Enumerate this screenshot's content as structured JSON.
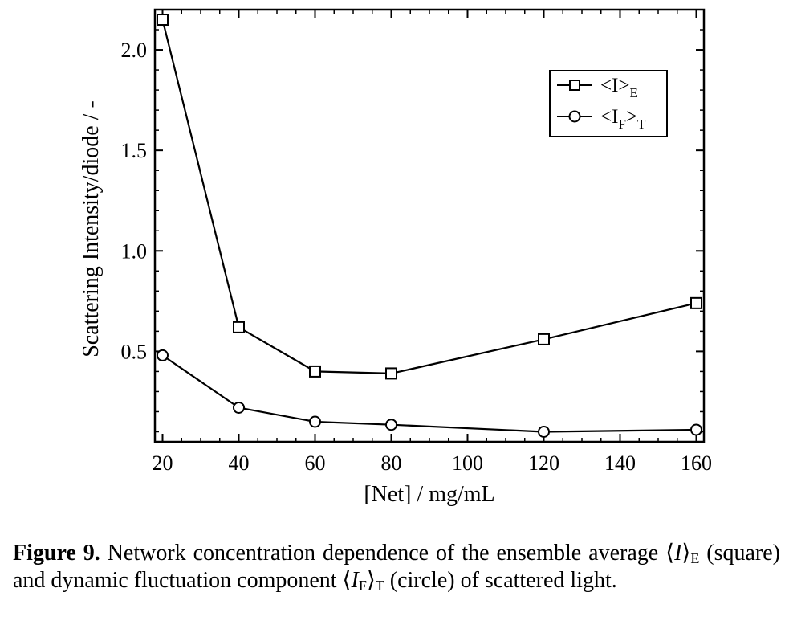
{
  "chart_data": {
    "type": "line",
    "xlabel": "[Net] / mg/mL",
    "ylabel": "Scattering Intensity/diode / -",
    "xlim": [
      18,
      162
    ],
    "ylim": [
      0.05,
      2.2
    ],
    "x_ticks": [
      20,
      40,
      60,
      80,
      100,
      120,
      140,
      160
    ],
    "y_ticks": [
      0.5,
      1.0,
      1.5,
      2.0
    ],
    "x_tick_labels": [
      "20",
      "40",
      "60",
      "80",
      "100",
      "120",
      "140",
      "160"
    ],
    "y_tick_labels": [
      "0.5",
      "1.0",
      "1.5",
      "2.0"
    ],
    "grid": false,
    "legend_position": "top-right",
    "series": [
      {
        "name": "<I>",
        "name_sub": "E",
        "marker": "square",
        "x": [
          20,
          40,
          60,
          80,
          120,
          160
        ],
        "y": [
          2.15,
          0.62,
          0.4,
          0.39,
          0.56,
          0.74
        ]
      },
      {
        "name": "<I",
        "name_sub_inner": "F",
        "name_mid": ">",
        "name_sub": "T",
        "marker": "circle",
        "x": [
          20,
          40,
          60,
          80,
          120,
          160
        ],
        "y": [
          0.48,
          0.22,
          0.15,
          0.135,
          0.1,
          0.11
        ]
      }
    ]
  },
  "caption": {
    "label": "Figure 9.",
    "text_1": " Network concentration dependence of the ensemble average ⟨",
    "i1": "I",
    "text_2": "⟩",
    "sub1": "E",
    "text_3": " (square) and dynamic fluctuation component ⟨",
    "i2": "I",
    "sub2": "F",
    "text_4": "⟩",
    "sub3": "T",
    "text_5": " (circle) of scattered light."
  }
}
